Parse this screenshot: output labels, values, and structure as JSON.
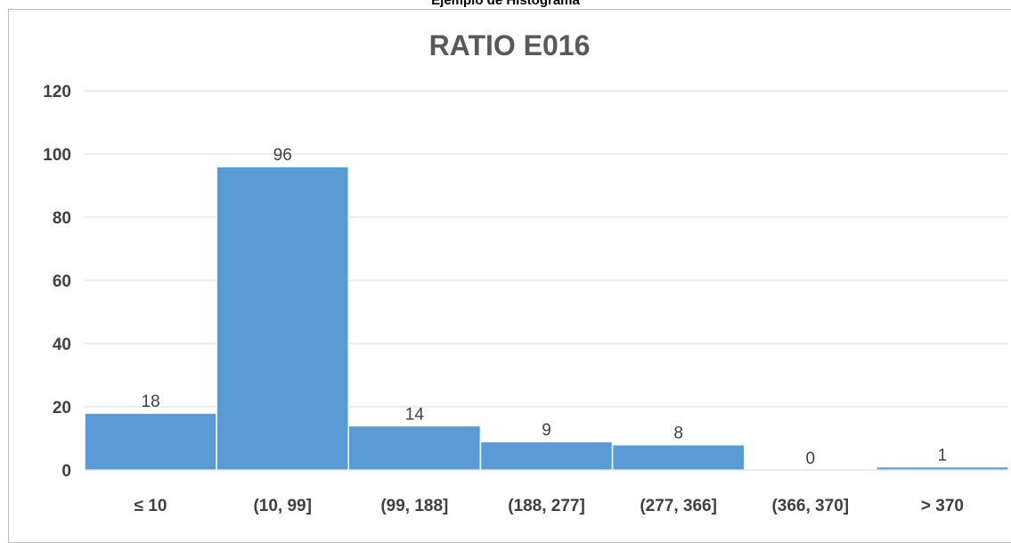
{
  "caption": "Ejemplo de Histograma",
  "chart_data": {
    "type": "bar",
    "title": "RATIO E016",
    "categories": [
      "≤ 10",
      "(10, 99]",
      "(99, 188]",
      "(188, 277]",
      "(277, 366]",
      "(366, 370]",
      "> 370"
    ],
    "values": [
      18,
      96,
      14,
      9,
      8,
      0,
      1
    ],
    "ylim": [
      0,
      120
    ],
    "yticks": [
      0,
      20,
      40,
      60,
      80,
      100,
      120
    ],
    "grid": true,
    "data_labels": true,
    "bar_color": "#5b9bd5"
  }
}
